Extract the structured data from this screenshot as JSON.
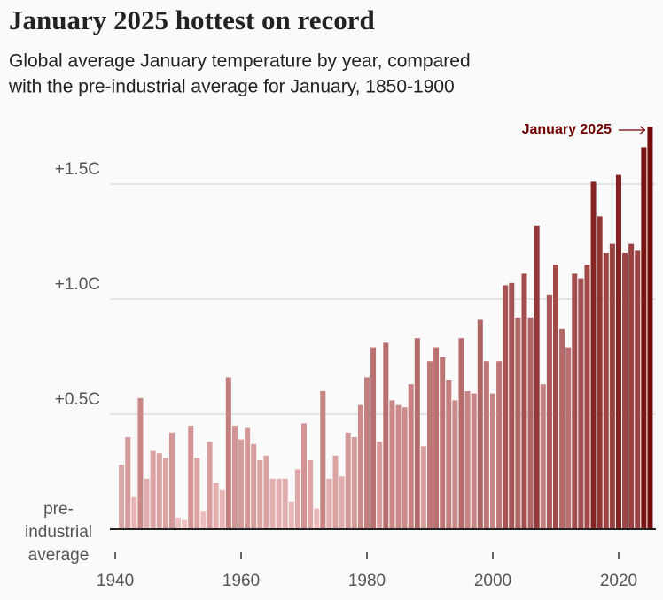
{
  "chart_data": {
    "type": "bar",
    "title": "January 2025 hottest on record",
    "subtitle": [
      "Global average January temperature by year, compared",
      "with the pre-industrial average for January, 1850-1900"
    ],
    "annotation": "January 2025",
    "x": [
      1941,
      1942,
      1943,
      1944,
      1945,
      1946,
      1947,
      1948,
      1949,
      1950,
      1951,
      1952,
      1953,
      1954,
      1955,
      1956,
      1957,
      1958,
      1959,
      1960,
      1961,
      1962,
      1963,
      1964,
      1965,
      1966,
      1967,
      1968,
      1969,
      1970,
      1971,
      1972,
      1973,
      1974,
      1975,
      1976,
      1977,
      1978,
      1979,
      1980,
      1981,
      1982,
      1983,
      1984,
      1985,
      1986,
      1987,
      1988,
      1989,
      1990,
      1991,
      1992,
      1993,
      1994,
      1995,
      1996,
      1997,
      1998,
      1999,
      2000,
      2001,
      2002,
      2003,
      2004,
      2005,
      2006,
      2007,
      2008,
      2009,
      2010,
      2011,
      2012,
      2013,
      2014,
      2015,
      2016,
      2017,
      2018,
      2019,
      2020,
      2021,
      2022,
      2023,
      2024,
      2025
    ],
    "values": [
      0.28,
      0.4,
      0.14,
      0.57,
      0.22,
      0.34,
      0.33,
      0.31,
      0.42,
      0.05,
      0.04,
      0.45,
      0.31,
      0.08,
      0.38,
      0.2,
      0.17,
      0.66,
      0.45,
      0.39,
      0.44,
      0.37,
      0.3,
      0.32,
      0.22,
      0.22,
      0.22,
      0.12,
      0.26,
      0.46,
      0.3,
      0.09,
      0.6,
      0.22,
      0.32,
      0.23,
      0.42,
      0.4,
      0.54,
      0.66,
      0.79,
      0.38,
      0.81,
      0.56,
      0.54,
      0.53,
      0.63,
      0.83,
      0.36,
      0.73,
      0.79,
      0.75,
      0.65,
      0.56,
      0.83,
      0.6,
      0.59,
      0.91,
      0.73,
      0.59,
      0.73,
      1.06,
      1.07,
      0.92,
      1.11,
      0.92,
      1.32,
      0.63,
      1.02,
      1.15,
      0.87,
      0.79,
      1.11,
      1.09,
      1.15,
      1.51,
      1.36,
      1.2,
      1.24,
      1.54,
      1.2,
      1.24,
      1.21,
      1.66,
      1.75
    ],
    "color_scale": [
      "#f2c4c4",
      "#6e0000"
    ],
    "xlim": [
      1939.5,
      2025.5
    ],
    "xticks": [
      1940,
      1960,
      1980,
      2000,
      2020
    ],
    "ylim": [
      0,
      1.85
    ],
    "yticks": [
      {
        "value": 0,
        "label": "pre-industrial average"
      },
      {
        "value": 0.5,
        "label": "+0.5C"
      },
      {
        "value": 1.0,
        "label": "+1.0C"
      },
      {
        "value": 1.5,
        "label": "+1.5C"
      }
    ],
    "grid": true
  }
}
